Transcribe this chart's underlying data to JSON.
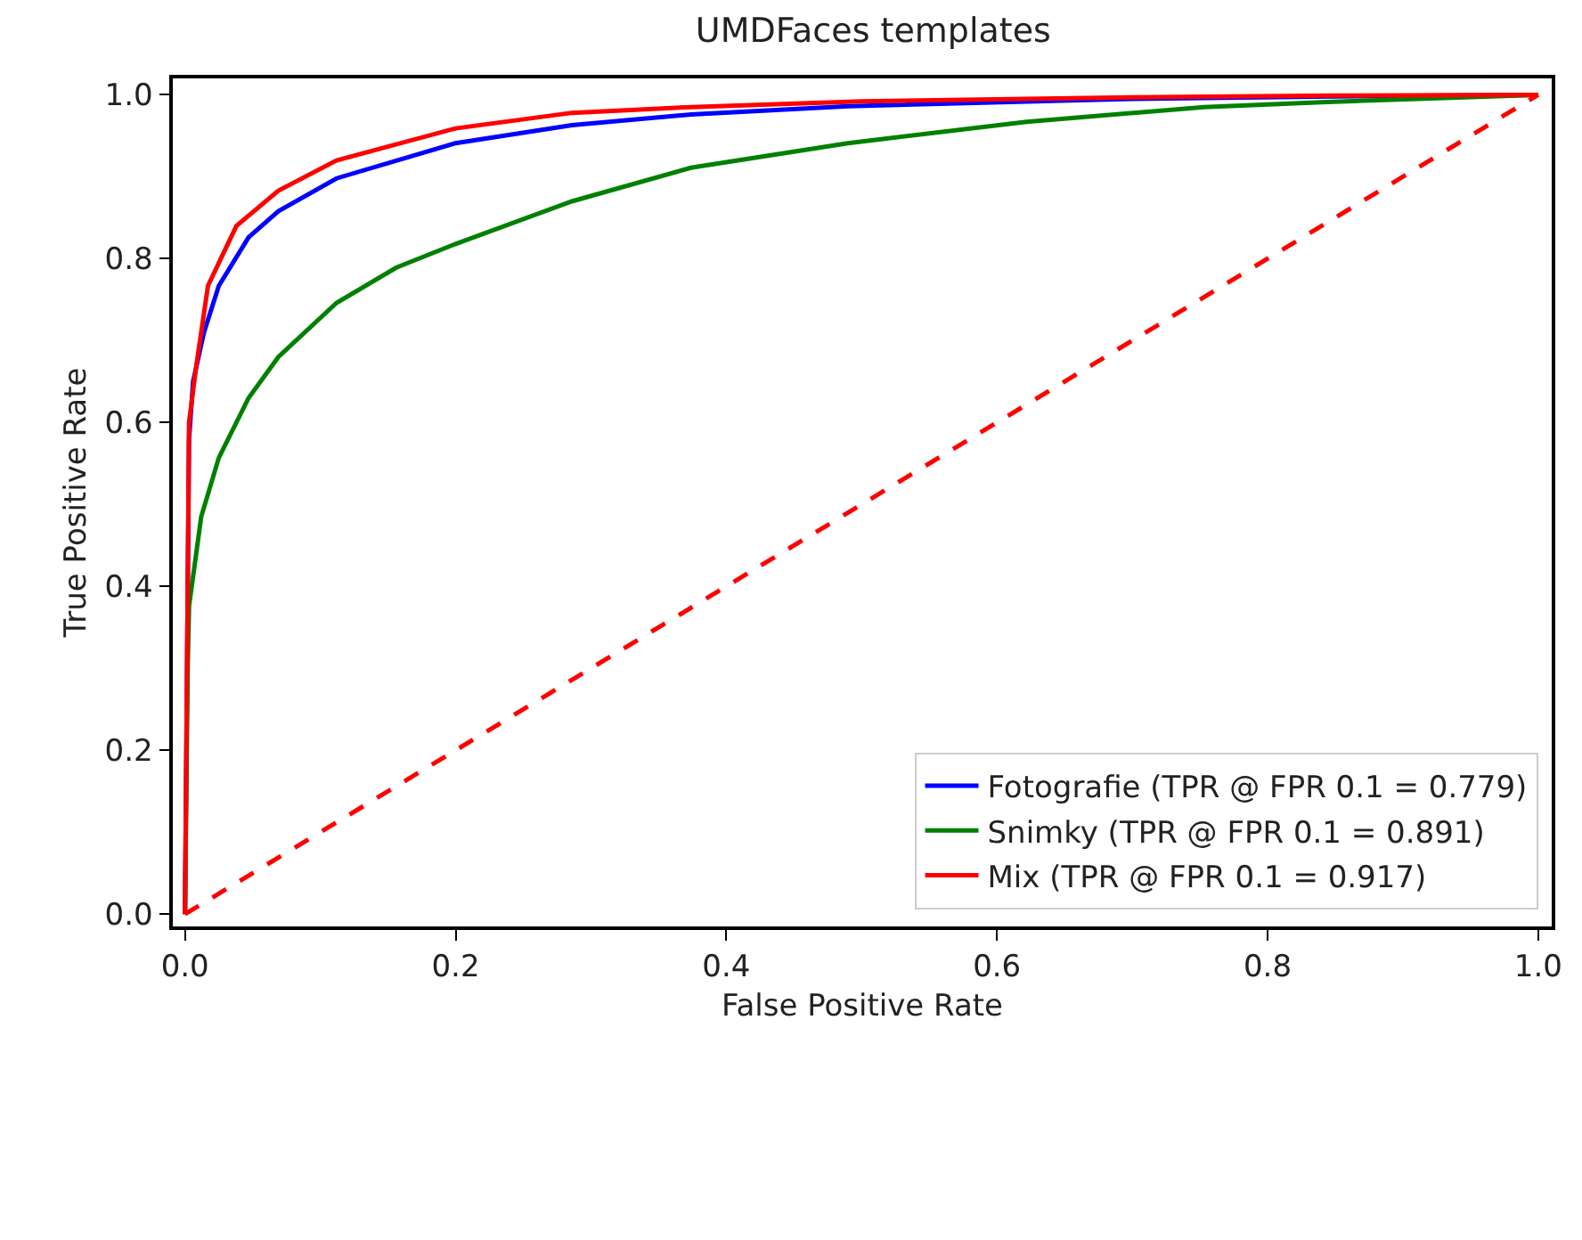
{
  "chart_data": {
    "type": "line",
    "title": "UMDFaces templates",
    "xlabel": "False Positive Rate",
    "ylabel": "True Positive Rate",
    "xlim": [
      -0.009,
      1.01
    ],
    "ylim": [
      -0.015,
      1.02
    ],
    "xticks": [
      {
        "value": 0,
        "label": "0.0"
      },
      {
        "value": 0.2,
        "label": "0.2"
      },
      {
        "value": 0.4,
        "label": "0.4"
      },
      {
        "value": 0.6,
        "label": "0.6"
      },
      {
        "value": 0.8,
        "label": "0.8"
      },
      {
        "value": 1,
        "label": "1.0"
      }
    ],
    "yticks": [
      {
        "value": 0,
        "label": "0.0"
      },
      {
        "value": 0.2,
        "label": "0.2"
      },
      {
        "value": 0.4,
        "label": "0.4"
      },
      {
        "value": 0.6,
        "label": "0.6"
      },
      {
        "value": 0.8,
        "label": "0.8"
      },
      {
        "value": 1,
        "label": "1.0"
      }
    ],
    "grid": false,
    "legend": "bottom right",
    "marker": "none",
    "series": [
      {
        "name": "Fotografie (TPR @ FPR 0.1 = 0.779)",
        "color": "#0000ff",
        "line_style": "solid",
        "x": [
          0,
          0.003,
          0.006,
          0.014,
          0.025,
          0.047,
          0.069,
          0.112,
          0.2,
          0.286,
          0.374,
          0.49,
          0.7,
          0.85,
          1
        ],
        "values": [
          0,
          0.58,
          0.65,
          0.71,
          0.767,
          0.826,
          0.858,
          0.898,
          0.941,
          0.963,
          0.976,
          0.986,
          0.995,
          0.998,
          1
        ]
      },
      {
        "name": "Snimky (TPR @ FPR 0.1 = 0.891)",
        "color": "#008000",
        "line_style": "solid",
        "x": [
          0,
          0.002,
          0.003,
          0.012,
          0.025,
          0.047,
          0.069,
          0.112,
          0.156,
          0.2,
          0.286,
          0.374,
          0.49,
          0.622,
          0.753,
          0.84,
          1
        ],
        "values": [
          0,
          0.3,
          0.376,
          0.485,
          0.557,
          0.63,
          0.68,
          0.746,
          0.789,
          0.818,
          0.87,
          0.911,
          0.941,
          0.967,
          0.985,
          0.991,
          1
        ]
      },
      {
        "name": "Mix (TPR @ FPR 0.1 = 0.917)",
        "color": "#ff0000",
        "line_style": "solid",
        "x": [
          0,
          0.003,
          0.008,
          0.017,
          0.038,
          0.069,
          0.112,
          0.2,
          0.286,
          0.374,
          0.5,
          0.7,
          0.85,
          1
        ],
        "values": [
          0,
          0.6,
          0.665,
          0.767,
          0.84,
          0.883,
          0.92,
          0.959,
          0.978,
          0.985,
          0.992,
          0.997,
          0.999,
          1
        ]
      },
      {
        "color": "#ff0000",
        "line_style": "dashed",
        "x": [
          0,
          1
        ],
        "values": [
          0,
          1
        ]
      }
    ]
  }
}
